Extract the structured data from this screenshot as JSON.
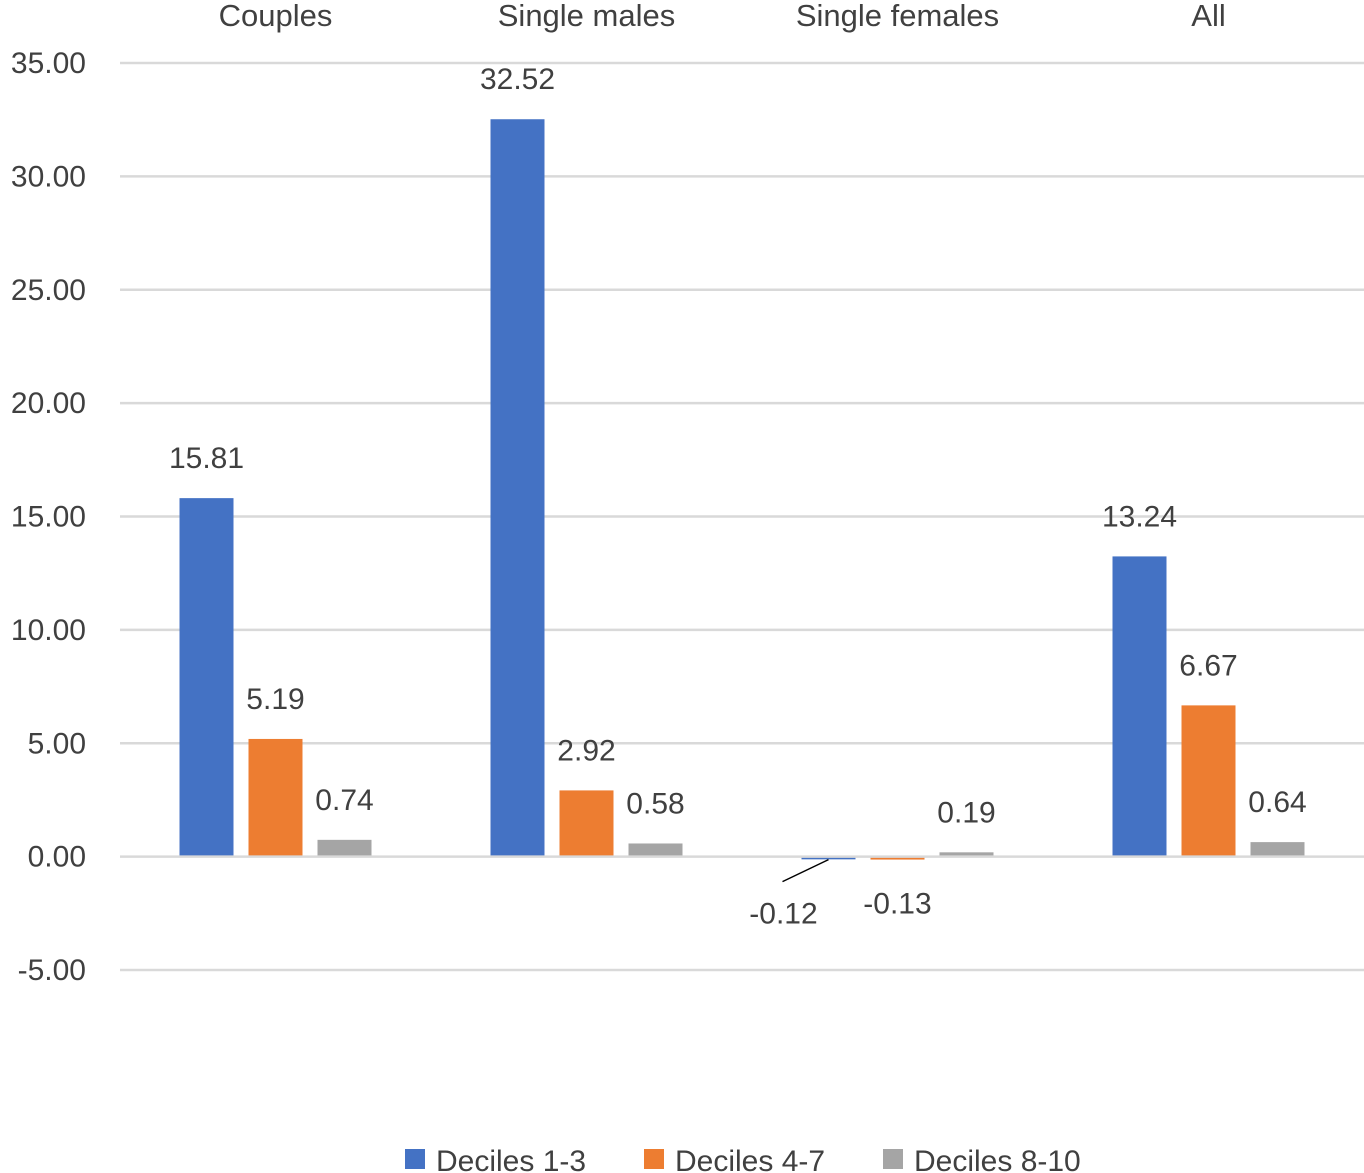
{
  "chart_data": {
    "type": "bar",
    "categories": [
      "Couples",
      "Single males",
      "Single females",
      "All"
    ],
    "series": [
      {
        "name": "Deciles 1-3",
        "color": "#4472C4",
        "values": [
          15.81,
          32.52,
          -0.12,
          13.24
        ],
        "labels": [
          "15.81",
          "32.52",
          "-0.12",
          "13.24"
        ]
      },
      {
        "name": "Deciles 4-7",
        "color": "#ED7D31",
        "values": [
          5.19,
          2.92,
          -0.13,
          6.67
        ],
        "labels": [
          "5.19",
          "2.92",
          "-0.13",
          "6.67"
        ]
      },
      {
        "name": "Deciles 8-10",
        "color": "#A5A5A5",
        "values": [
          0.74,
          0.58,
          0.19,
          0.64
        ],
        "labels": [
          "0.74",
          "0.58",
          "0.19",
          "0.64"
        ]
      }
    ],
    "y_ticks": [
      "35.00",
      "30.00",
      "25.00",
      "20.00",
      "15.00",
      "10.00",
      "5.00",
      "0.00",
      "-5.00"
    ],
    "ylim": [
      -5,
      35
    ],
    "category_axis_position": "top",
    "grid": true,
    "legend_position": "bottom",
    "title": "",
    "xlabel": "",
    "ylabel": ""
  }
}
